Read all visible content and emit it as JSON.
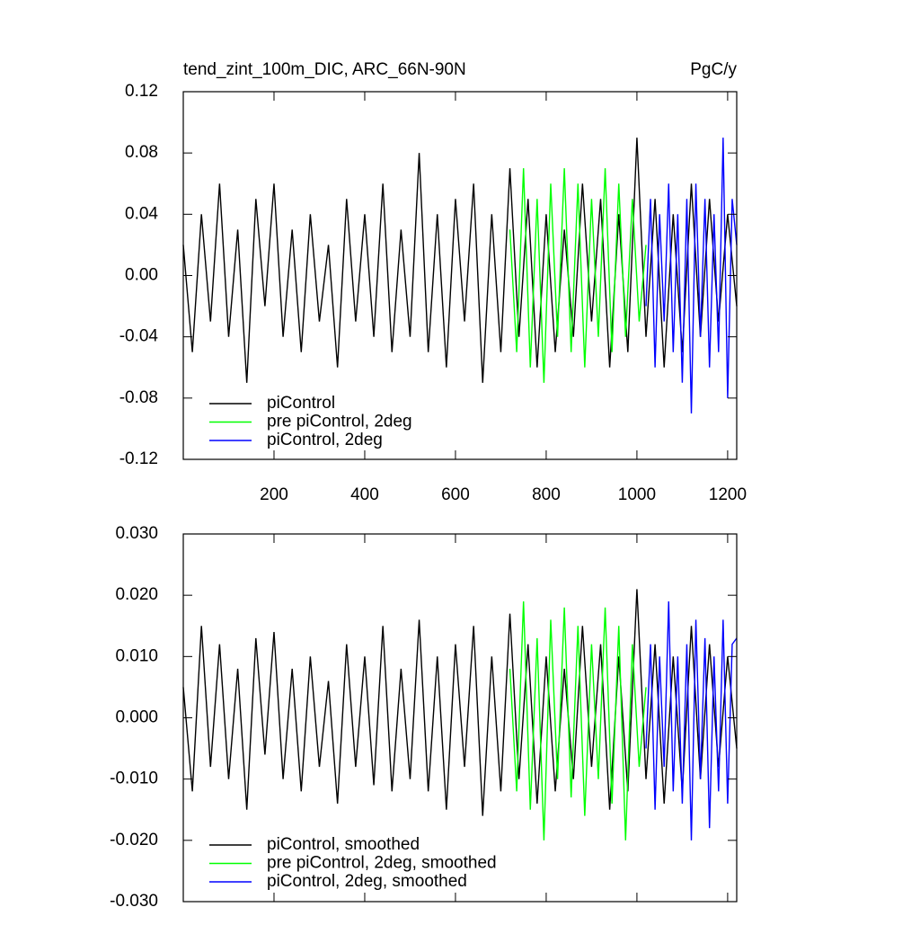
{
  "chart_data": [
    {
      "type": "line",
      "title": "tend_zint_100m_DIC, ARC_66N-90N",
      "subtitle": "PgC/y",
      "xlim": [
        0,
        1220
      ],
      "xticks": [
        200,
        400,
        600,
        800,
        1000,
        1200
      ],
      "ylim": [
        -0.12,
        0.12
      ],
      "yticks": [
        -0.12,
        -0.08,
        -0.04,
        {
          "value": 0,
          "label": "0.00"
        },
        0.04,
        0.08,
        0.12
      ],
      "legend": "lower left",
      "series": [
        {
          "name": "piControl",
          "color": "#000000",
          "x": [
            0,
            20,
            40,
            60,
            80,
            100,
            120,
            140,
            160,
            180,
            200,
            220,
            240,
            260,
            280,
            300,
            320,
            340,
            360,
            380,
            400,
            420,
            440,
            460,
            480,
            500,
            520,
            540,
            560,
            580,
            600,
            620,
            640,
            660,
            680,
            700,
            720,
            740,
            760,
            780,
            800,
            820,
            840,
            860,
            880,
            900,
            920,
            940,
            960,
            980,
            1000,
            1020,
            1040,
            1060,
            1080,
            1100,
            1120,
            1140,
            1160,
            1180,
            1200,
            1220
          ],
          "values": [
            0.02,
            -0.05,
            0.04,
            -0.03,
            0.06,
            -0.04,
            0.03,
            -0.07,
            0.05,
            -0.02,
            0.06,
            -0.04,
            0.03,
            -0.05,
            0.04,
            -0.03,
            0.02,
            -0.06,
            0.05,
            -0.03,
            0.04,
            -0.04,
            0.06,
            -0.05,
            0.03,
            -0.04,
            0.08,
            -0.05,
            0.04,
            -0.06,
            0.05,
            -0.03,
            0.06,
            -0.07,
            0.04,
            -0.05,
            0.07,
            -0.04,
            0.05,
            -0.06,
            0.04,
            -0.05,
            0.03,
            -0.04,
            0.06,
            -0.03,
            0.05,
            -0.06,
            0.04,
            -0.05,
            0.09,
            -0.04,
            0.05,
            -0.06,
            0.04,
            -0.05,
            0.06,
            -0.04,
            0.05,
            -0.03,
            0.04,
            -0.02
          ]
        },
        {
          "name": "pre piControl, 2deg",
          "color": "#00ff00",
          "x": [
            720,
            735,
            750,
            765,
            780,
            795,
            810,
            825,
            840,
            855,
            870,
            885,
            900,
            915,
            930,
            945,
            960,
            975,
            990,
            1005,
            1020
          ],
          "values": [
            0.03,
            -0.05,
            0.07,
            -0.06,
            0.05,
            -0.07,
            0.06,
            -0.04,
            0.07,
            -0.05,
            0.06,
            -0.06,
            0.05,
            -0.04,
            0.07,
            -0.05,
            0.06,
            -0.04,
            0.05,
            -0.03,
            0.02
          ]
        },
        {
          "name": "piControl, 2deg",
          "color": "#0000ff",
          "x": [
            1020,
            1030,
            1040,
            1050,
            1060,
            1070,
            1080,
            1090,
            1100,
            1110,
            1120,
            1130,
            1140,
            1150,
            1160,
            1170,
            1180,
            1190,
            1200,
            1210,
            1220
          ],
          "values": [
            -0.02,
            0.05,
            -0.06,
            0.04,
            -0.03,
            0.06,
            -0.05,
            0.04,
            -0.07,
            0.05,
            -0.09,
            0.06,
            -0.04,
            0.05,
            -0.06,
            0.04,
            -0.05,
            0.09,
            -0.08,
            0.05,
            0.02
          ]
        }
      ]
    },
    {
      "type": "line",
      "xlim": [
        0,
        1220
      ],
      "xticks": [
        200,
        400,
        600,
        800,
        1000,
        1200
      ],
      "ylim": [
        -0.03,
        0.03
      ],
      "yticks": [
        {
          "value": -0.03,
          "label": "-0.030"
        },
        {
          "value": -0.02,
          "label": "-0.020"
        },
        {
          "value": -0.01,
          "label": "-0.010"
        },
        {
          "value": 0,
          "label": "0.000"
        },
        {
          "value": 0.01,
          "label": "0.010"
        },
        {
          "value": 0.02,
          "label": "0.020"
        },
        {
          "value": 0.03,
          "label": "0.030"
        }
      ],
      "legend": "lower left",
      "series": [
        {
          "name": "piControl, smoothed",
          "color": "#000000",
          "x": [
            0,
            20,
            40,
            60,
            80,
            100,
            120,
            140,
            160,
            180,
            200,
            220,
            240,
            260,
            280,
            300,
            320,
            340,
            360,
            380,
            400,
            420,
            440,
            460,
            480,
            500,
            520,
            540,
            560,
            580,
            600,
            620,
            640,
            660,
            680,
            700,
            720,
            740,
            760,
            780,
            800,
            820,
            840,
            860,
            880,
            900,
            920,
            940,
            960,
            980,
            1000,
            1020,
            1040,
            1060,
            1080,
            1100,
            1120,
            1140,
            1160,
            1180,
            1200,
            1220
          ],
          "values": [
            0.005,
            -0.012,
            0.015,
            -0.008,
            0.012,
            -0.01,
            0.008,
            -0.015,
            0.013,
            -0.006,
            0.014,
            -0.01,
            0.008,
            -0.012,
            0.01,
            -0.008,
            0.006,
            -0.014,
            0.012,
            -0.008,
            0.01,
            -0.011,
            0.015,
            -0.012,
            0.008,
            -0.01,
            0.016,
            -0.012,
            0.01,
            -0.015,
            0.012,
            -0.008,
            0.015,
            -0.016,
            0.01,
            -0.012,
            0.017,
            -0.01,
            0.012,
            -0.014,
            0.01,
            -0.012,
            0.008,
            -0.01,
            0.015,
            -0.008,
            0.012,
            -0.015,
            0.01,
            -0.012,
            0.021,
            -0.01,
            0.012,
            -0.014,
            0.01,
            -0.012,
            0.015,
            -0.01,
            0.012,
            -0.008,
            0.01,
            -0.005
          ]
        },
        {
          "name": "pre piControl, 2deg, smoothed",
          "color": "#00ff00",
          "x": [
            720,
            735,
            750,
            765,
            780,
            795,
            810,
            825,
            840,
            855,
            870,
            885,
            900,
            915,
            930,
            945,
            960,
            975,
            990,
            1005,
            1020
          ],
          "values": [
            0.008,
            -0.012,
            0.019,
            -0.015,
            0.013,
            -0.02,
            0.016,
            -0.01,
            0.018,
            -0.013,
            0.015,
            -0.016,
            0.012,
            -0.01,
            0.018,
            -0.014,
            0.015,
            -0.02,
            0.012,
            -0.008,
            0.005
          ]
        },
        {
          "name": "piControl, 2deg, smoothed",
          "color": "#0000ff",
          "x": [
            1020,
            1030,
            1040,
            1050,
            1060,
            1070,
            1080,
            1090,
            1100,
            1110,
            1120,
            1130,
            1140,
            1150,
            1160,
            1170,
            1180,
            1190,
            1200,
            1210,
            1220
          ],
          "values": [
            -0.005,
            0.012,
            -0.015,
            0.01,
            -0.008,
            0.019,
            -0.012,
            0.01,
            -0.014,
            0.012,
            -0.02,
            0.016,
            -0.01,
            0.013,
            -0.018,
            0.01,
            -0.012,
            0.016,
            -0.014,
            0.012,
            0.013
          ]
        }
      ]
    }
  ]
}
